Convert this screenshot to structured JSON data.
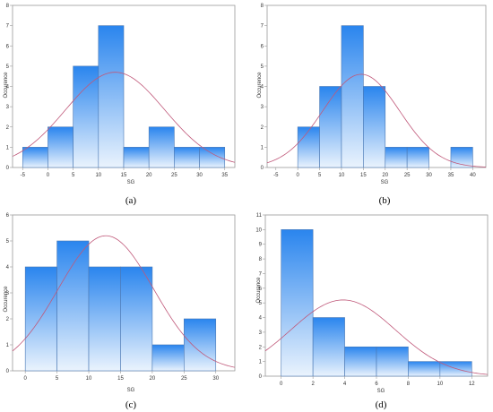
{
  "colors": {
    "bar_top": "#2a85ee",
    "bar_bottom": "#eaf3fd",
    "bar_stroke": "#4a78b4",
    "curve": "#c0597a",
    "frame": "#9a9a9a"
  },
  "chart_data": [
    {
      "type": "bar",
      "caption": "(a)",
      "xlabel": "SG",
      "ylabel": "Occurence",
      "bin_edges": [
        -5,
        0,
        5,
        10,
        15,
        20,
        25,
        30,
        35
      ],
      "values": [
        1,
        2,
        5,
        7,
        1,
        2,
        1,
        1
      ],
      "xlim": [
        -7,
        37
      ],
      "ylim": [
        0,
        8
      ],
      "xticks": [
        -5,
        0,
        5,
        10,
        15,
        20,
        25,
        30,
        35
      ],
      "yticks": [
        0,
        1,
        2,
        3,
        4,
        5,
        6,
        7,
        8
      ],
      "normal_fit": {
        "mean": 13.3,
        "peak": 4.7,
        "sd": 9.8
      },
      "grid": false
    },
    {
      "type": "bar",
      "caption": "(b)",
      "xlabel": "SG",
      "ylabel": "Occurence",
      "bin_edges": [
        0,
        5,
        10,
        15,
        20,
        25,
        30,
        35,
        40
      ],
      "values": [
        2,
        4,
        7,
        4,
        1,
        1,
        0,
        1
      ],
      "xlim": [
        -7,
        43
      ],
      "ylim": [
        0,
        8
      ],
      "xticks": [
        -5,
        0,
        5,
        10,
        15,
        20,
        25,
        30,
        35,
        40
      ],
      "yticks": [
        0,
        1,
        2,
        3,
        4,
        5,
        6,
        7,
        8
      ],
      "normal_fit": {
        "mean": 14.5,
        "peak": 4.6,
        "sd": 8.8
      },
      "grid": false
    },
    {
      "type": "bar",
      "caption": "(c)",
      "xlabel": "SG",
      "ylabel": "Occurence",
      "bin_edges": [
        0,
        5,
        10,
        15,
        20,
        25,
        30
      ],
      "values": [
        4,
        5,
        4,
        4,
        1,
        2
      ],
      "xlim": [
        -2,
        33
      ],
      "ylim": [
        0,
        6
      ],
      "xticks": [
        0,
        5,
        10,
        15,
        20,
        25,
        30
      ],
      "yticks": [
        0,
        1,
        2,
        3,
        4,
        5,
        6
      ],
      "normal_fit": {
        "mean": 12.7,
        "peak": 5.2,
        "sd": 7.5
      },
      "grid": false
    },
    {
      "type": "bar",
      "caption": "(d)",
      "xlabel": "SG",
      "ylabel": "Occurence",
      "bin_edges": [
        0,
        2,
        4,
        6,
        8,
        10,
        12
      ],
      "values": [
        10,
        4,
        2,
        2,
        1,
        1
      ],
      "xlim": [
        -1,
        13
      ],
      "ylim": [
        0,
        11
      ],
      "xticks": [
        0,
        2,
        4,
        6,
        8,
        10,
        12
      ],
      "yticks": [
        0,
        1,
        2,
        3,
        4,
        5,
        6,
        7,
        8,
        9,
        10,
        11
      ],
      "normal_fit": {
        "mean": 3.9,
        "peak": 5.2,
        "sd": 3.3
      },
      "grid": false
    }
  ]
}
